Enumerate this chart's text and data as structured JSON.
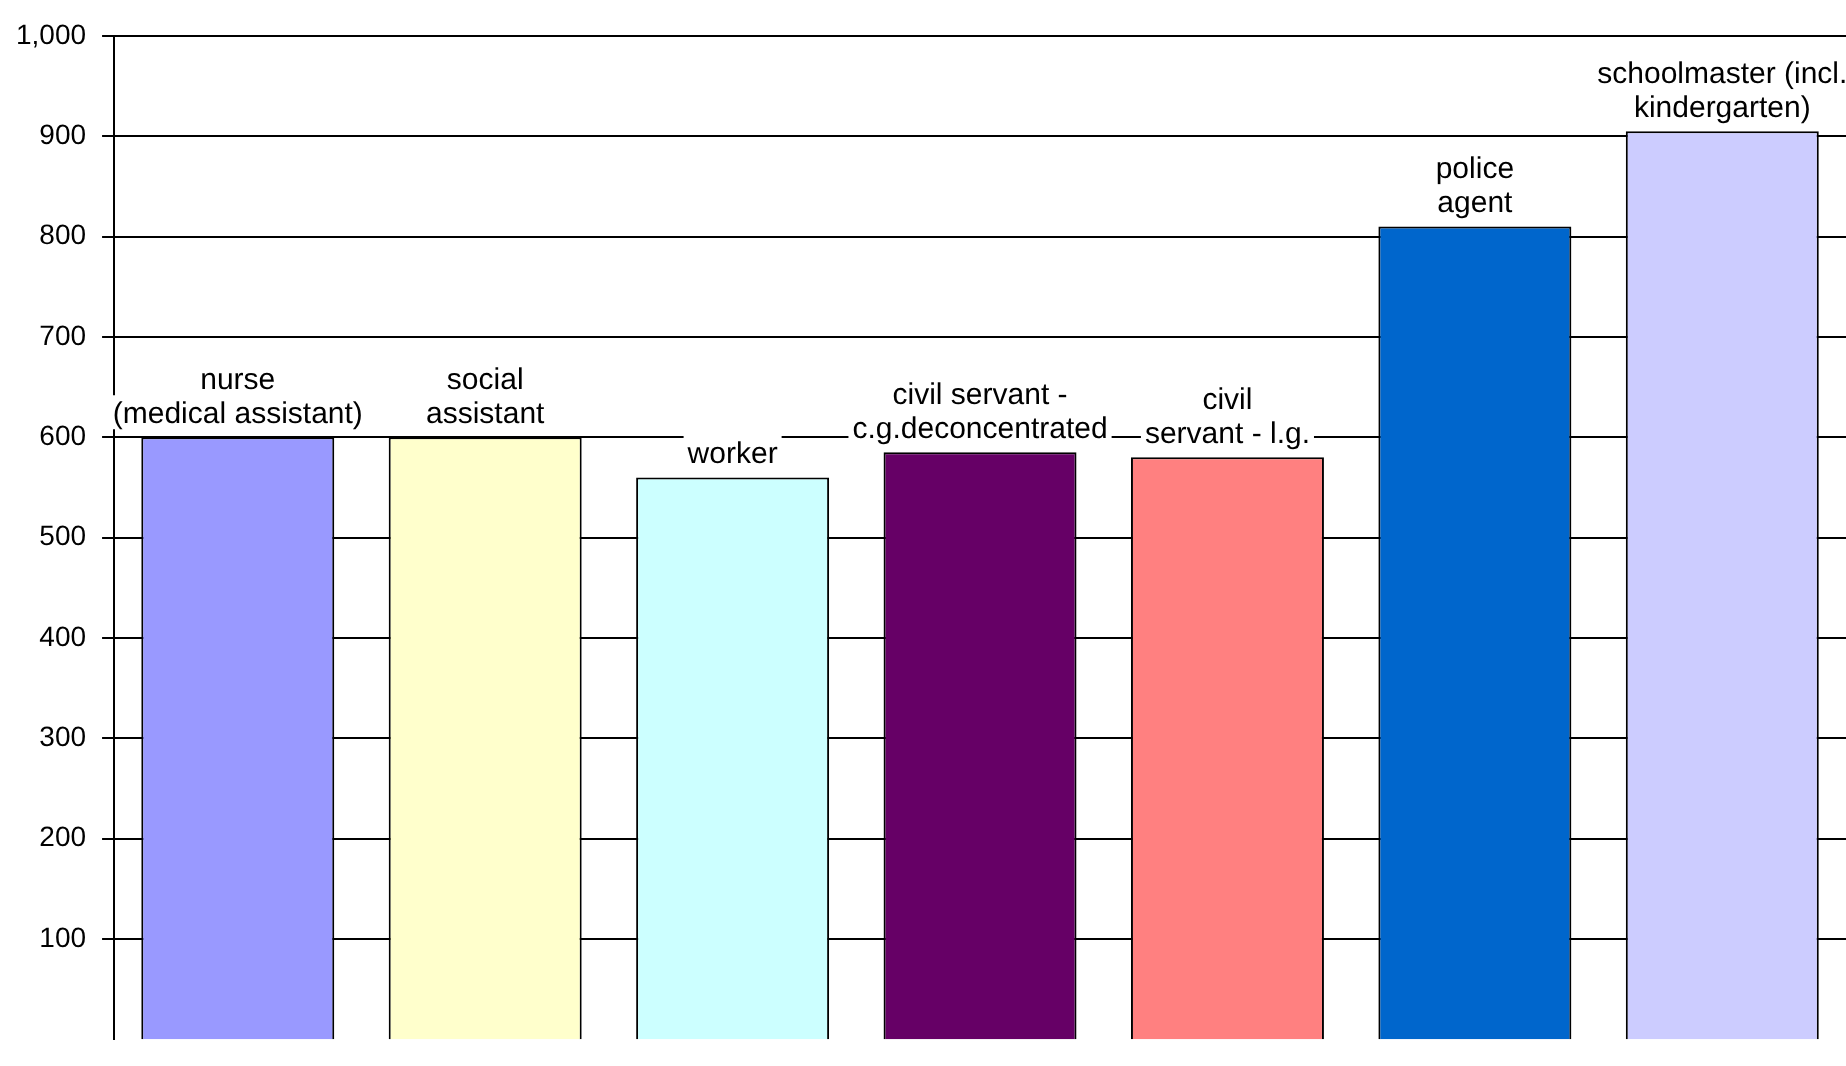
{
  "chart_data": {
    "type": "bar",
    "categories": [
      "nurse\n(medical assistant)",
      "social\nassistant",
      "worker",
      "civil servant -\nc.g.deconcentrated",
      "civil\nservant - l.g.",
      "police\nagent",
      "schoolmaster (incl.\nkindergarten)"
    ],
    "values": [
      600,
      600,
      560,
      585,
      580,
      810,
      905
    ],
    "colors": [
      "#9999ff",
      "#ffffcc",
      "#ccffff",
      "#660066",
      "#ff8080",
      "#0066cc",
      "#ccccff"
    ],
    "ylim": [
      0,
      1000
    ],
    "yticks": [
      100,
      200,
      300,
      400,
      500,
      600,
      700,
      800,
      900,
      {
        "value": 1000,
        "label": "1,000"
      }
    ],
    "grid": "y",
    "tick_labels": "y",
    "legend": false
  }
}
